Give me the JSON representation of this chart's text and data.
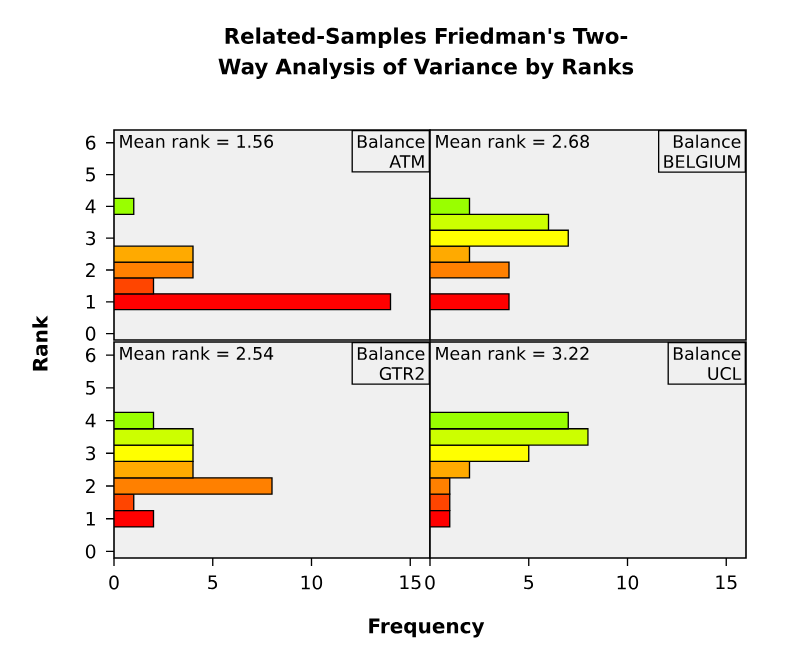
{
  "chart_data": [
    {
      "type": "histogram",
      "orientation": "horizontal",
      "title": "Related-Samples Friedman's Two-Way Analysis of Variance by Ranks",
      "ylabel": "Rank",
      "bins": [
        0.75,
        1.25,
        1.75,
        2.25,
        2.75,
        3.25,
        3.75,
        4.25
      ],
      "values": [
        14,
        2,
        4,
        4,
        0,
        0,
        1
      ],
      "colors": [
        "#ff0000",
        "#ff4500",
        "#ff8000",
        "#ffaa00",
        "#ffff00",
        "#ccff00",
        "#99ff00"
      ],
      "xlim": [
        0,
        16
      ],
      "ylim": [
        -0.2,
        6.4
      ],
      "yticks": [
        0,
        1,
        2,
        3,
        4,
        5,
        6
      ],
      "tick_labels": "y",
      "annotations": [
        "Mean rank = 1.56",
        "Balance",
        "ATM"
      ]
    },
    {
      "type": "histogram",
      "orientation": "horizontal",
      "bins": [
        0.75,
        1.25,
        1.75,
        2.25,
        2.75,
        3.25,
        3.75,
        4.25
      ],
      "values": [
        4,
        0,
        4,
        2,
        7,
        6,
        2
      ],
      "colors": [
        "#ff0000",
        "#ff4500",
        "#ff8000",
        "#ffaa00",
        "#ffff00",
        "#ccff00",
        "#99ff00"
      ],
      "xlim": [
        0,
        16
      ],
      "ylim": [
        -0.2,
        6.4
      ],
      "tick_labels": false,
      "annotations": [
        "Mean rank = 2.68",
        "Balance",
        "BELGIUM"
      ]
    },
    {
      "type": "histogram",
      "orientation": "horizontal",
      "xlabel": "Frequency",
      "bins": [
        0.75,
        1.25,
        1.75,
        2.25,
        2.75,
        3.25,
        3.75,
        4.25
      ],
      "values": [
        2,
        1,
        8,
        4,
        4,
        4,
        2
      ],
      "colors": [
        "#ff0000",
        "#ff4500",
        "#ff8000",
        "#ffaa00",
        "#ffff00",
        "#ccff00",
        "#99ff00"
      ],
      "xlim": [
        0,
        16
      ],
      "xticks": [
        0,
        5,
        10,
        15
      ],
      "ylim": [
        -0.2,
        6.4
      ],
      "yticks": [
        0,
        1,
        2,
        3,
        4,
        5,
        6
      ],
      "annotations": [
        "Mean rank = 2.54",
        "Balance",
        "GTR2"
      ]
    },
    {
      "type": "histogram",
      "orientation": "horizontal",
      "bins": [
        0.75,
        1.25,
        1.75,
        2.25,
        2.75,
        3.25,
        3.75,
        4.25
      ],
      "values": [
        1,
        1,
        1,
        2,
        5,
        8,
        7
      ],
      "colors": [
        "#ff0000",
        "#ff4500",
        "#ff8000",
        "#ffaa00",
        "#ffff00",
        "#ccff00",
        "#99ff00"
      ],
      "xlim": [
        0,
        16
      ],
      "xticks": [
        0,
        5,
        10,
        15
      ],
      "ylim": [
        -0.2,
        6.4
      ],
      "tick_labels": "x",
      "annotations": [
        "Mean rank = 3.22",
        "Balance",
        "UCL"
      ]
    }
  ]
}
